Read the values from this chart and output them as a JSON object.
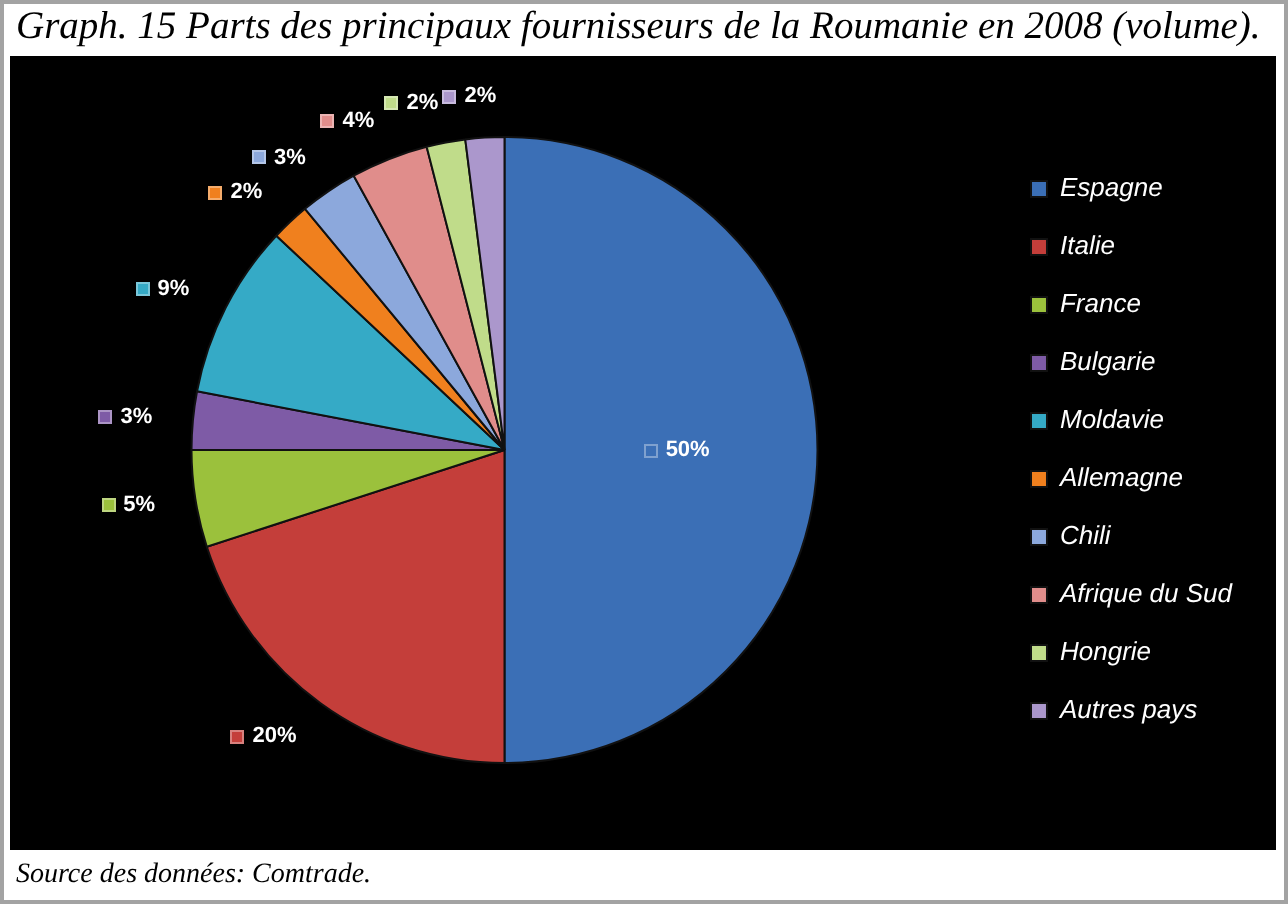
{
  "chart_data": {
    "type": "pie",
    "title": "Graph. 15 Parts des principaux fournisseurs de la Roumanie en 2008 (volume).",
    "categories": [
      "Espagne",
      "Italie",
      "France",
      "Bulgarie",
      "Moldavie",
      "Allemagne",
      "Chili",
      "Afrique du Sud",
      "Hongrie",
      "Autres pays"
    ],
    "values": [
      50,
      20,
      5,
      3,
      9,
      2,
      3,
      4,
      2,
      2
    ],
    "colors": [
      "#3b6fb6",
      "#c43e3a",
      "#9bc13c",
      "#7e5ba6",
      "#35aac6",
      "#f0801e",
      "#8ca8dc",
      "#e08d8b",
      "#c0dc8a",
      "#ab97cc"
    ],
    "value_labels": [
      "50%",
      "20%",
      "5%",
      "3%",
      "9%",
      "2%",
      "3%",
      "4%",
      "2%",
      "2%"
    ],
    "legend": "right",
    "annotations": [
      "Source des données: Comtrade."
    ]
  }
}
